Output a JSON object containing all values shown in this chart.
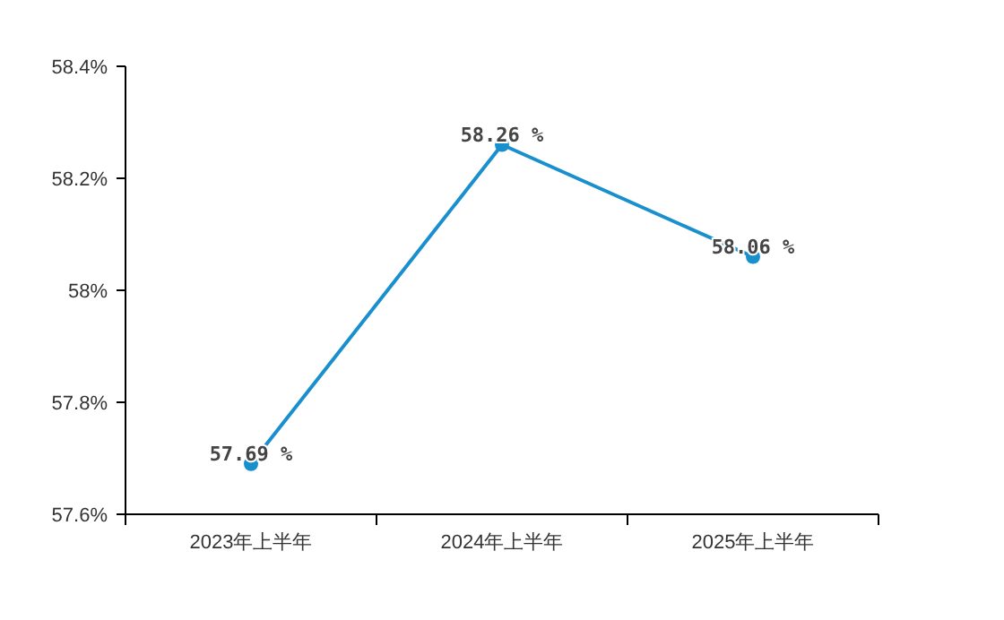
{
  "chart_data": {
    "type": "line",
    "categories": [
      "2023年上半年",
      "2024年上半年",
      "2025年上半年"
    ],
    "values": [
      57.69,
      58.26,
      58.06
    ],
    "value_labels": [
      "57.69 %",
      "58.26 %",
      "58.06 %"
    ],
    "color": "#1a8fce",
    "marker": "circle",
    "grid": false,
    "ylim": [
      57.6,
      58.4
    ],
    "yticks": [
      {
        "value": 57.6,
        "label": "57.6%"
      },
      {
        "value": 57.8,
        "label": "57.8%"
      },
      {
        "value": 58,
        "label": "58%"
      },
      {
        "value": 58.2,
        "label": "58.2%"
      },
      {
        "value": 58.4,
        "label": "58.4%"
      }
    ]
  }
}
